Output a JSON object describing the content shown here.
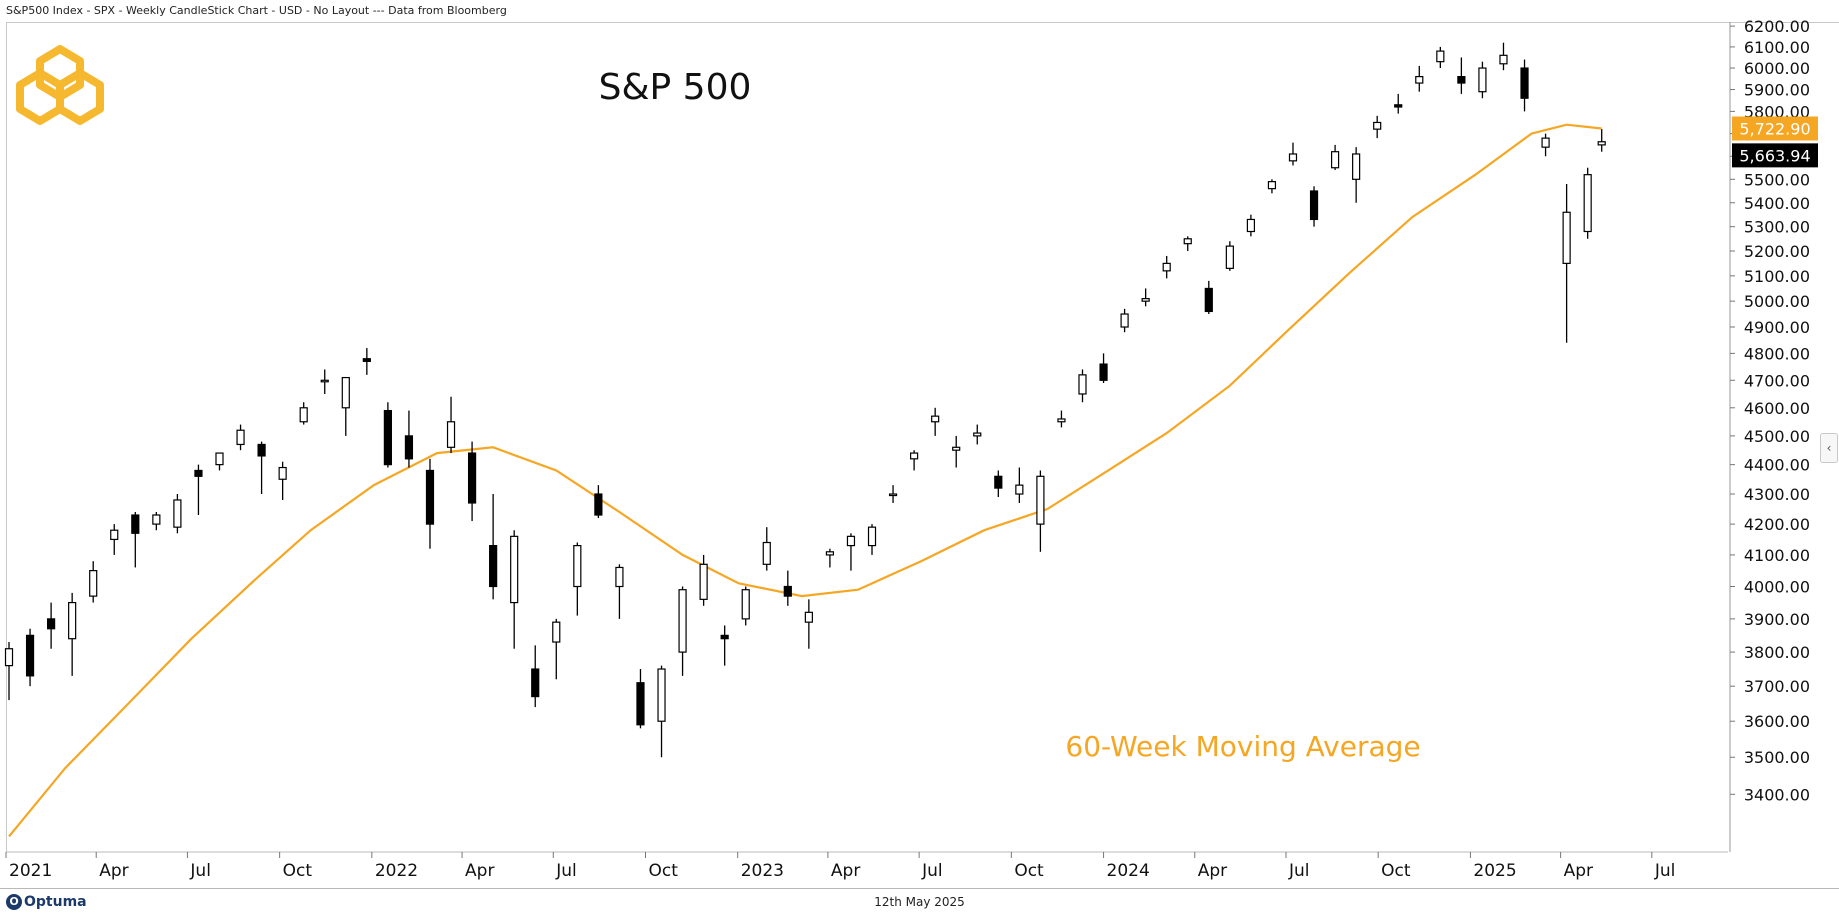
{
  "header": {
    "text": "S&P500 Index - SPX - Weekly CandleStick Chart - USD - No Layout --- Data from Bloomberg"
  },
  "footer": {
    "brand": "Optuma",
    "date": "12th May 2025"
  },
  "colors": {
    "accent": "#f5a623",
    "candle": "#000000",
    "price_badge_bg": "#000000",
    "ma_badge_bg": "#f5a623"
  },
  "chart_data": {
    "type": "candlestick",
    "title": "S&P 500",
    "annotations": [
      "60-Week Moving Average"
    ],
    "ylim": [
      3250,
      6220
    ],
    "y_scale": "log",
    "y_ticks": [
      3400,
      3500,
      3600,
      3700,
      3800,
      3900,
      4000,
      4100,
      4200,
      4300,
      4400,
      4500,
      4600,
      4700,
      4800,
      4900,
      5000,
      5100,
      5200,
      5300,
      5400,
      5500,
      5600,
      5700,
      5800,
      5900,
      6000,
      6100,
      6200
    ],
    "x_range": [
      "2021-01-01",
      "2025-09-15"
    ],
    "x_ticks": [
      {
        "label": "2021",
        "date": "2021-01-01"
      },
      {
        "label": "Apr",
        "date": "2021-04-01"
      },
      {
        "label": "Jul",
        "date": "2021-07-01"
      },
      {
        "label": "Oct",
        "date": "2021-10-01"
      },
      {
        "label": "2022",
        "date": "2022-01-01"
      },
      {
        "label": "Apr",
        "date": "2022-04-01"
      },
      {
        "label": "Jul",
        "date": "2022-07-01"
      },
      {
        "label": "Oct",
        "date": "2022-10-01"
      },
      {
        "label": "2023",
        "date": "2023-01-01"
      },
      {
        "label": "Apr",
        "date": "2023-04-01"
      },
      {
        "label": "Jul",
        "date": "2023-07-01"
      },
      {
        "label": "Oct",
        "date": "2023-10-01"
      },
      {
        "label": "2024",
        "date": "2024-01-01"
      },
      {
        "label": "Apr",
        "date": "2024-04-01"
      },
      {
        "label": "Jul",
        "date": "2024-07-01"
      },
      {
        "label": "Oct",
        "date": "2024-10-01"
      },
      {
        "label": "2025",
        "date": "2025-01-01"
      },
      {
        "label": "Apr",
        "date": "2025-04-01"
      },
      {
        "label": "Jul",
        "date": "2025-07-01"
      }
    ],
    "series": [
      {
        "name": "S&P 500",
        "style": "candlestick",
        "last_value": "5,663.94",
        "candles": [
          {
            "d": "2021-01-04",
            "o": 3760,
            "h": 3830,
            "l": 3660,
            "c": 3810
          },
          {
            "d": "2021-01-25",
            "o": 3850,
            "h": 3870,
            "l": 3700,
            "c": 3730
          },
          {
            "d": "2021-02-15",
            "o": 3900,
            "h": 3950,
            "l": 3810,
            "c": 3870
          },
          {
            "d": "2021-03-08",
            "o": 3840,
            "h": 3980,
            "l": 3730,
            "c": 3950
          },
          {
            "d": "2021-03-29",
            "o": 3970,
            "h": 4080,
            "l": 3950,
            "c": 4050
          },
          {
            "d": "2021-04-19",
            "o": 4150,
            "h": 4200,
            "l": 4100,
            "c": 4180
          },
          {
            "d": "2021-05-10",
            "o": 4230,
            "h": 4240,
            "l": 4060,
            "c": 4170
          },
          {
            "d": "2021-05-31",
            "o": 4200,
            "h": 4240,
            "l": 4180,
            "c": 4230
          },
          {
            "d": "2021-06-21",
            "o": 4190,
            "h": 4300,
            "l": 4170,
            "c": 4280
          },
          {
            "d": "2021-07-12",
            "o": 4380,
            "h": 4400,
            "l": 4230,
            "c": 4360
          },
          {
            "d": "2021-08-02",
            "o": 4400,
            "h": 4440,
            "l": 4380,
            "c": 4440
          },
          {
            "d": "2021-08-23",
            "o": 4470,
            "h": 4540,
            "l": 4450,
            "c": 4520
          },
          {
            "d": "2021-09-13",
            "o": 4470,
            "h": 4480,
            "l": 4300,
            "c": 4430
          },
          {
            "d": "2021-10-04",
            "o": 4350,
            "h": 4410,
            "l": 4280,
            "c": 4390
          },
          {
            "d": "2021-10-25",
            "o": 4550,
            "h": 4620,
            "l": 4540,
            "c": 4600
          },
          {
            "d": "2021-11-15",
            "o": 4700,
            "h": 4740,
            "l": 4650,
            "c": 4700
          },
          {
            "d": "2021-12-06",
            "o": 4600,
            "h": 4710,
            "l": 4500,
            "c": 4710
          },
          {
            "d": "2021-12-27",
            "o": 4780,
            "h": 4820,
            "l": 4720,
            "c": 4770
          },
          {
            "d": "2022-01-17",
            "o": 4590,
            "h": 4620,
            "l": 4390,
            "c": 4400
          },
          {
            "d": "2022-02-07",
            "o": 4500,
            "h": 4590,
            "l": 4390,
            "c": 4420
          },
          {
            "d": "2022-02-28",
            "o": 4380,
            "h": 4420,
            "l": 4120,
            "c": 4200
          },
          {
            "d": "2022-03-21",
            "o": 4460,
            "h": 4640,
            "l": 4440,
            "c": 4550
          },
          {
            "d": "2022-04-11",
            "o": 4440,
            "h": 4480,
            "l": 4210,
            "c": 4270
          },
          {
            "d": "2022-05-02",
            "o": 4130,
            "h": 4300,
            "l": 3960,
            "c": 4000
          },
          {
            "d": "2022-05-23",
            "o": 3950,
            "h": 4180,
            "l": 3810,
            "c": 4160
          },
          {
            "d": "2022-06-13",
            "o": 3750,
            "h": 3820,
            "l": 3640,
            "c": 3670
          },
          {
            "d": "2022-07-04",
            "o": 3830,
            "h": 3900,
            "l": 3720,
            "c": 3890
          },
          {
            "d": "2022-07-25",
            "o": 4000,
            "h": 4140,
            "l": 3910,
            "c": 4130
          },
          {
            "d": "2022-08-15",
            "o": 4300,
            "h": 4330,
            "l": 4220,
            "c": 4230
          },
          {
            "d": "2022-09-05",
            "o": 4000,
            "h": 4070,
            "l": 3900,
            "c": 4060
          },
          {
            "d": "2022-09-26",
            "o": 3710,
            "h": 3750,
            "l": 3580,
            "c": 3590
          },
          {
            "d": "2022-10-17",
            "o": 3600,
            "h": 3760,
            "l": 3500,
            "c": 3750
          },
          {
            "d": "2022-11-07",
            "o": 3800,
            "h": 4000,
            "l": 3730,
            "c": 3990
          },
          {
            "d": "2022-11-28",
            "o": 3960,
            "h": 4100,
            "l": 3940,
            "c": 4070
          },
          {
            "d": "2022-12-19",
            "o": 3850,
            "h": 3880,
            "l": 3760,
            "c": 3840
          },
          {
            "d": "2023-01-09",
            "o": 3900,
            "h": 4000,
            "l": 3880,
            "c": 3990
          },
          {
            "d": "2023-01-30",
            "o": 4070,
            "h": 4190,
            "l": 4050,
            "c": 4140
          },
          {
            "d": "2023-02-20",
            "o": 4000,
            "h": 4050,
            "l": 3940,
            "c": 3970
          },
          {
            "d": "2023-03-13",
            "o": 3890,
            "h": 3960,
            "l": 3810,
            "c": 3920
          },
          {
            "d": "2023-04-03",
            "o": 4100,
            "h": 4120,
            "l": 4060,
            "c": 4110
          },
          {
            "d": "2023-04-24",
            "o": 4130,
            "h": 4170,
            "l": 4050,
            "c": 4160
          },
          {
            "d": "2023-05-15",
            "o": 4130,
            "h": 4200,
            "l": 4100,
            "c": 4190
          },
          {
            "d": "2023-06-05",
            "o": 4300,
            "h": 4330,
            "l": 4270,
            "c": 4300
          },
          {
            "d": "2023-06-26",
            "o": 4420,
            "h": 4450,
            "l": 4380,
            "c": 4440
          },
          {
            "d": "2023-07-17",
            "o": 4550,
            "h": 4600,
            "l": 4500,
            "c": 4570
          },
          {
            "d": "2023-08-07",
            "o": 4450,
            "h": 4500,
            "l": 4390,
            "c": 4460
          },
          {
            "d": "2023-08-28",
            "o": 4500,
            "h": 4540,
            "l": 4470,
            "c": 4510
          },
          {
            "d": "2023-09-18",
            "o": 4360,
            "h": 4380,
            "l": 4290,
            "c": 4320
          },
          {
            "d": "2023-10-09",
            "o": 4300,
            "h": 4390,
            "l": 4270,
            "c": 4330
          },
          {
            "d": "2023-10-30",
            "o": 4200,
            "h": 4380,
            "l": 4110,
            "c": 4360
          },
          {
            "d": "2023-11-20",
            "o": 4550,
            "h": 4590,
            "l": 4530,
            "c": 4560
          },
          {
            "d": "2023-12-11",
            "o": 4650,
            "h": 4740,
            "l": 4620,
            "c": 4720
          },
          {
            "d": "2024-01-01",
            "o": 4760,
            "h": 4800,
            "l": 4690,
            "c": 4700
          },
          {
            "d": "2024-01-22",
            "o": 4900,
            "h": 4970,
            "l": 4880,
            "c": 4950
          },
          {
            "d": "2024-02-12",
            "o": 5000,
            "h": 5050,
            "l": 4980,
            "c": 5010
          },
          {
            "d": "2024-03-04",
            "o": 5120,
            "h": 5180,
            "l": 5090,
            "c": 5150
          },
          {
            "d": "2024-03-25",
            "o": 5230,
            "h": 5260,
            "l": 5200,
            "c": 5250
          },
          {
            "d": "2024-04-15",
            "o": 5050,
            "h": 5080,
            "l": 4950,
            "c": 4960
          },
          {
            "d": "2024-05-06",
            "o": 5130,
            "h": 5240,
            "l": 5120,
            "c": 5220
          },
          {
            "d": "2024-05-27",
            "o": 5280,
            "h": 5350,
            "l": 5260,
            "c": 5330
          },
          {
            "d": "2024-06-17",
            "o": 5460,
            "h": 5500,
            "l": 5440,
            "c": 5490
          },
          {
            "d": "2024-07-08",
            "o": 5580,
            "h": 5660,
            "l": 5560,
            "c": 5610
          },
          {
            "d": "2024-07-29",
            "o": 5450,
            "h": 5470,
            "l": 5300,
            "c": 5330
          },
          {
            "d": "2024-08-19",
            "o": 5550,
            "h": 5650,
            "l": 5540,
            "c": 5620
          },
          {
            "d": "2024-09-09",
            "o": 5500,
            "h": 5640,
            "l": 5400,
            "c": 5610
          },
          {
            "d": "2024-09-30",
            "o": 5720,
            "h": 5780,
            "l": 5680,
            "c": 5750
          },
          {
            "d": "2024-10-21",
            "o": 5830,
            "h": 5880,
            "l": 5790,
            "c": 5820
          },
          {
            "d": "2024-11-11",
            "o": 5930,
            "h": 6010,
            "l": 5890,
            "c": 5960
          },
          {
            "d": "2024-12-02",
            "o": 6030,
            "h": 6100,
            "l": 6000,
            "c": 6080
          },
          {
            "d": "2024-12-23",
            "o": 5960,
            "h": 6050,
            "l": 5880,
            "c": 5930
          },
          {
            "d": "2025-01-13",
            "o": 5890,
            "h": 6030,
            "l": 5860,
            "c": 6000
          },
          {
            "d": "2025-02-03",
            "o": 6020,
            "h": 6120,
            "l": 5990,
            "c": 6060
          },
          {
            "d": "2025-02-24",
            "o": 6000,
            "h": 6040,
            "l": 5800,
            "c": 5860
          },
          {
            "d": "2025-03-17",
            "o": 5640,
            "h": 5700,
            "l": 5600,
            "c": 5680
          },
          {
            "d": "2025-04-07",
            "o": 5150,
            "h": 5480,
            "l": 4840,
            "c": 5360
          },
          {
            "d": "2025-04-28",
            "o": 5280,
            "h": 5550,
            "l": 5250,
            "c": 5520
          },
          {
            "d": "2025-05-12",
            "o": 5650,
            "h": 5720,
            "l": 5620,
            "c": 5663.94
          }
        ]
      },
      {
        "name": "60-Week Moving Average",
        "style": "line",
        "last_value": "5,722.90",
        "points": [
          {
            "d": "2021-01-04",
            "v": 3290
          },
          {
            "d": "2021-03-01",
            "v": 3470
          },
          {
            "d": "2021-05-03",
            "v": 3650
          },
          {
            "d": "2021-07-05",
            "v": 3840
          },
          {
            "d": "2021-09-06",
            "v": 4020
          },
          {
            "d": "2021-11-01",
            "v": 4180
          },
          {
            "d": "2022-01-03",
            "v": 4330
          },
          {
            "d": "2022-03-07",
            "v": 4440
          },
          {
            "d": "2022-05-02",
            "v": 4460
          },
          {
            "d": "2022-07-04",
            "v": 4380
          },
          {
            "d": "2022-09-05",
            "v": 4240
          },
          {
            "d": "2022-11-07",
            "v": 4100
          },
          {
            "d": "2023-01-02",
            "v": 4010
          },
          {
            "d": "2023-03-06",
            "v": 3970
          },
          {
            "d": "2023-05-01",
            "v": 3990
          },
          {
            "d": "2023-07-03",
            "v": 4080
          },
          {
            "d": "2023-09-04",
            "v": 4180
          },
          {
            "d": "2023-11-06",
            "v": 4250
          },
          {
            "d": "2024-01-01",
            "v": 4370
          },
          {
            "d": "2024-03-04",
            "v": 4510
          },
          {
            "d": "2024-05-06",
            "v": 4680
          },
          {
            "d": "2024-07-01",
            "v": 4880
          },
          {
            "d": "2024-09-02",
            "v": 5110
          },
          {
            "d": "2024-11-04",
            "v": 5340
          },
          {
            "d": "2025-01-06",
            "v": 5520
          },
          {
            "d": "2025-03-03",
            "v": 5700
          },
          {
            "d": "2025-04-07",
            "v": 5740
          },
          {
            "d": "2025-05-12",
            "v": 5722.9
          }
        ]
      }
    ]
  }
}
